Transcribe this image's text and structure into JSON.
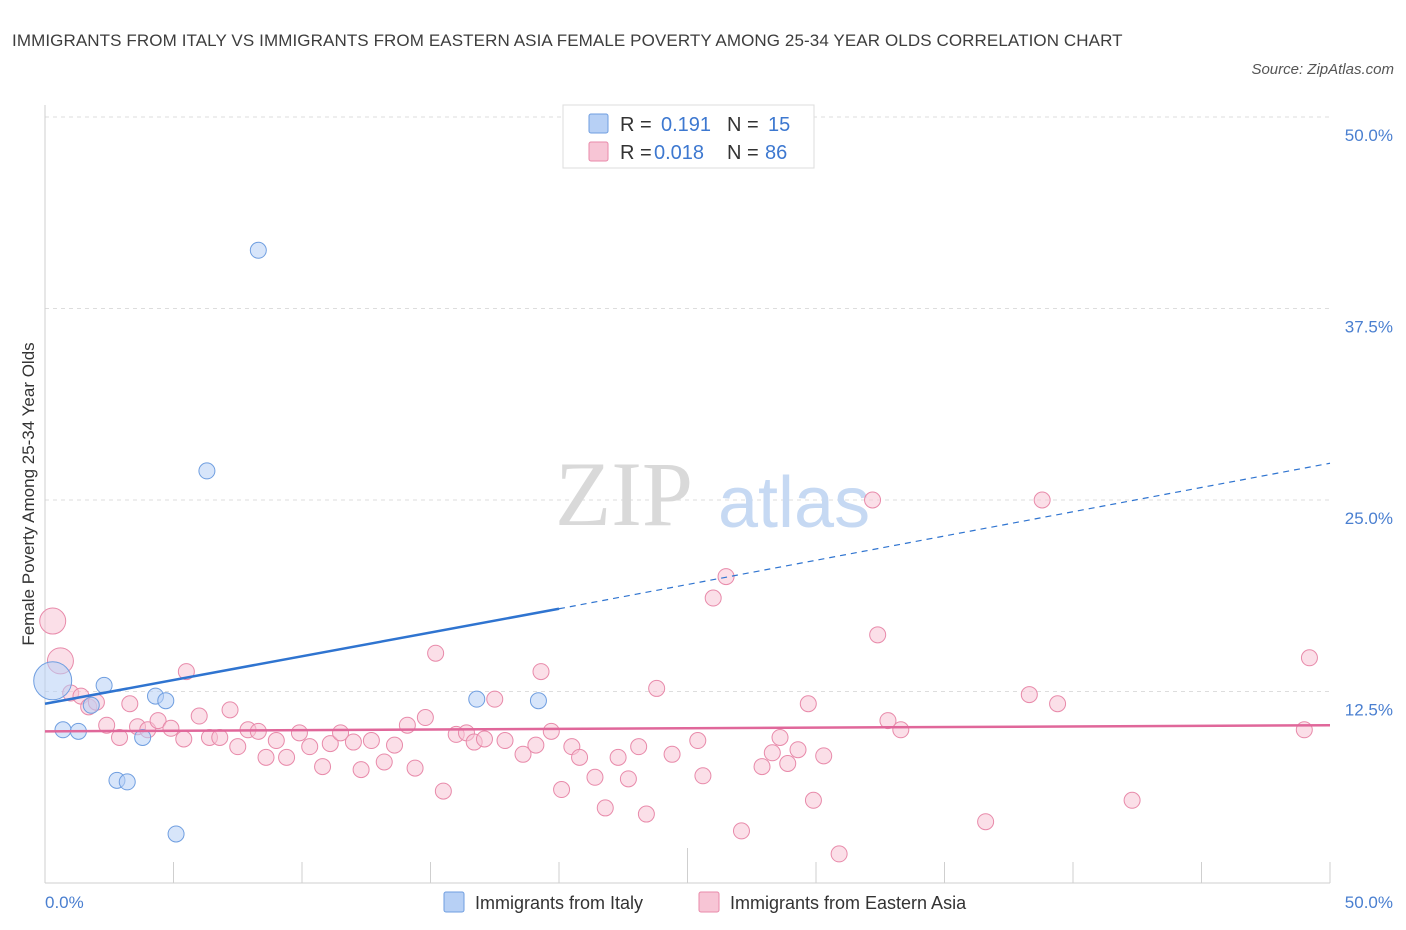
{
  "title": "IMMIGRANTS FROM ITALY VS IMMIGRANTS FROM EASTERN ASIA FEMALE POVERTY AMONG 25-34 YEAR OLDS CORRELATION CHART",
  "source": "Source: ZipAtlas.com",
  "watermark": {
    "zip": "ZIP",
    "atlas": "atlas"
  },
  "colors": {
    "italy_fill": "#b7d0f5",
    "italy_stroke": "#6f9ee0",
    "italy_line": "#2f74d0",
    "asia_fill": "#f7c5d5",
    "asia_stroke": "#e88aaa",
    "asia_line": "#e0679a",
    "grid": "#dddddd",
    "tick_label": "#4a7fd0"
  },
  "chart_data": {
    "type": "scatter",
    "title": "IMMIGRANTS FROM ITALY VS IMMIGRANTS FROM EASTERN ASIA FEMALE POVERTY AMONG 25-34 YEAR OLDS CORRELATION CHART",
    "xlabel": "",
    "ylabel": "Female Poverty Among 25-34 Year Olds",
    "xlim": [
      0,
      50
    ],
    "ylim": [
      0,
      50
    ],
    "x_tick_labels": [
      "0.0%",
      "50.0%"
    ],
    "y_ticks": [
      12.5,
      25.0,
      37.5,
      50.0
    ],
    "y_tick_labels": [
      "12.5%",
      "25.0%",
      "37.5%",
      "50.0%"
    ],
    "grid": true,
    "legend_position": "top-center",
    "legend": [
      {
        "series": "Immigrants from Italy",
        "r_label": "R =",
        "r_value": "0.191",
        "n_label": "N =",
        "n_value": "15"
      },
      {
        "series": "Immigrants from Eastern Asia",
        "r_label": "R =",
        "r_value": "0.018",
        "n_label": "N =",
        "n_value": "86"
      }
    ],
    "series": [
      {
        "name": "Immigrants from Italy",
        "points": [
          [
            0.3,
            13.2
          ],
          [
            0.7,
            10.0
          ],
          [
            1.3,
            9.9
          ],
          [
            1.8,
            11.6
          ],
          [
            2.3,
            12.9
          ],
          [
            2.8,
            6.7
          ],
          [
            3.2,
            6.6
          ],
          [
            3.8,
            9.5
          ],
          [
            4.3,
            12.2
          ],
          [
            4.7,
            11.9
          ],
          [
            5.1,
            3.2
          ],
          [
            6.3,
            26.9
          ],
          [
            8.3,
            41.3
          ],
          [
            16.8,
            12.0
          ],
          [
            19.2,
            11.9
          ]
        ],
        "sizes": [
          3,
          1,
          1,
          1,
          1,
          1,
          1,
          1,
          1,
          1,
          1,
          1,
          1,
          1,
          1
        ],
        "trend": {
          "x0": 0,
          "y0": 11.7,
          "x1": 20,
          "y1": 17.9,
          "x_dash_end": 50,
          "y_dash_end": 27.4
        }
      },
      {
        "name": "Immigrants from Eastern Asia",
        "points": [
          [
            0.3,
            17.1
          ],
          [
            0.6,
            14.5
          ],
          [
            1.0,
            12.4
          ],
          [
            1.4,
            12.2
          ],
          [
            1.7,
            11.5
          ],
          [
            2.0,
            11.8
          ],
          [
            2.4,
            10.3
          ],
          [
            2.9,
            9.5
          ],
          [
            3.3,
            11.7
          ],
          [
            3.6,
            10.2
          ],
          [
            4.0,
            10.0
          ],
          [
            4.4,
            10.6
          ],
          [
            4.9,
            10.1
          ],
          [
            5.4,
            9.4
          ],
          [
            5.5,
            13.8
          ],
          [
            6.0,
            10.9
          ],
          [
            6.4,
            9.5
          ],
          [
            6.8,
            9.5
          ],
          [
            7.2,
            11.3
          ],
          [
            7.5,
            8.9
          ],
          [
            7.9,
            10.0
          ],
          [
            8.3,
            9.9
          ],
          [
            8.6,
            8.2
          ],
          [
            9.0,
            9.3
          ],
          [
            9.4,
            8.2
          ],
          [
            9.9,
            9.8
          ],
          [
            10.3,
            8.9
          ],
          [
            10.8,
            7.6
          ],
          [
            11.1,
            9.1
          ],
          [
            11.5,
            9.8
          ],
          [
            12.0,
            9.2
          ],
          [
            12.3,
            7.4
          ],
          [
            12.7,
            9.3
          ],
          [
            13.2,
            7.9
          ],
          [
            13.6,
            9.0
          ],
          [
            14.1,
            10.3
          ],
          [
            14.4,
            7.5
          ],
          [
            14.8,
            10.8
          ],
          [
            15.2,
            15.0
          ],
          [
            15.5,
            6.0
          ],
          [
            16.0,
            9.7
          ],
          [
            16.4,
            9.8
          ],
          [
            16.7,
            9.2
          ],
          [
            17.1,
            9.4
          ],
          [
            17.5,
            12.0
          ],
          [
            17.9,
            9.3
          ],
          [
            18.6,
            8.4
          ],
          [
            19.1,
            9.0
          ],
          [
            19.3,
            13.8
          ],
          [
            19.7,
            9.9
          ],
          [
            20.1,
            6.1
          ],
          [
            20.5,
            8.9
          ],
          [
            20.8,
            8.2
          ],
          [
            21.4,
            6.9
          ],
          [
            21.8,
            4.9
          ],
          [
            22.3,
            8.2
          ],
          [
            22.7,
            6.8
          ],
          [
            23.1,
            8.9
          ],
          [
            23.4,
            4.5
          ],
          [
            23.8,
            12.7
          ],
          [
            24.4,
            8.4
          ],
          [
            25.4,
            9.3
          ],
          [
            25.6,
            7.0
          ],
          [
            26.0,
            18.6
          ],
          [
            26.5,
            20.0
          ],
          [
            27.1,
            3.4
          ],
          [
            27.9,
            7.6
          ],
          [
            28.3,
            8.5
          ],
          [
            28.6,
            9.5
          ],
          [
            28.9,
            7.8
          ],
          [
            29.3,
            8.7
          ],
          [
            29.7,
            11.7
          ],
          [
            29.9,
            5.4
          ],
          [
            30.3,
            8.3
          ],
          [
            30.9,
            1.9
          ],
          [
            32.2,
            25.0
          ],
          [
            32.4,
            16.2
          ],
          [
            32.8,
            10.6
          ],
          [
            33.3,
            10.0
          ],
          [
            36.6,
            4.0
          ],
          [
            38.3,
            12.3
          ],
          [
            38.8,
            25.0
          ],
          [
            39.4,
            11.7
          ],
          [
            42.3,
            5.4
          ],
          [
            49.0,
            10.0
          ],
          [
            49.2,
            14.7
          ]
        ],
        "sizes": [
          2,
          2,
          1,
          1,
          1,
          1,
          1,
          1,
          1,
          1,
          1,
          1,
          1,
          1,
          1,
          1,
          1,
          1,
          1,
          1,
          1,
          1,
          1,
          1,
          1,
          1,
          1,
          1,
          1,
          1,
          1,
          1,
          1,
          1,
          1,
          1,
          1,
          1,
          1,
          1,
          1,
          1,
          1,
          1,
          1,
          1,
          1,
          1,
          1,
          1,
          1,
          1,
          1,
          1,
          1,
          1,
          1,
          1,
          1,
          1,
          1,
          1,
          1,
          1,
          1,
          1,
          1,
          1,
          1,
          1,
          1,
          1,
          1,
          1,
          1,
          1,
          1,
          1,
          1,
          1,
          1,
          1,
          1,
          1,
          1,
          1
        ],
        "trend": {
          "x0": 0,
          "y0": 9.9,
          "x1": 50,
          "y1": 10.3
        }
      }
    ]
  }
}
